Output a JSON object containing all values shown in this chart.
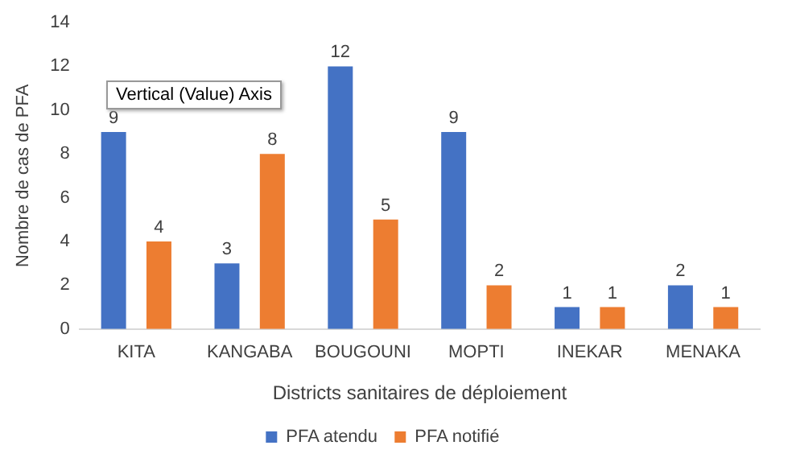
{
  "chart_data": {
    "type": "bar",
    "xlabel": "Districts sanitaires de déploiement",
    "ylabel": "Nombre de cas de PFA",
    "categories": [
      "KITA",
      "KANGABA",
      "BOUGOUNI",
      "MOPTI",
      "INEKAR",
      "MENAKA"
    ],
    "series": [
      {
        "name": "PFA atendu",
        "color": "#4472c4",
        "values": [
          9,
          3,
          12,
          9,
          1,
          2
        ]
      },
      {
        "name": "PFA notifié",
        "color": "#ed7d31",
        "values": [
          4,
          8,
          5,
          2,
          1,
          1
        ]
      }
    ],
    "ylim": [
      0,
      14
    ],
    "yticks": [
      0,
      2,
      4,
      6,
      8,
      10,
      12,
      14
    ],
    "grid": false,
    "legend": "bottom",
    "data_labels": true,
    "annotations": [
      "Vertical (Value) Axis"
    ]
  }
}
